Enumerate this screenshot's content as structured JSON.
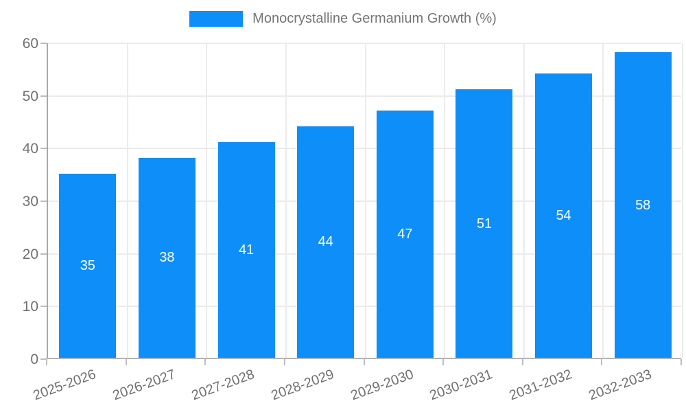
{
  "legend": {
    "label": "Monocrystalline Germanium Growth (%)"
  },
  "chart_data": {
    "type": "bar",
    "title": "",
    "xlabel": "",
    "ylabel": "",
    "categories": [
      "2025-2026",
      "2026-2027",
      "2027-2028",
      "2028-2029",
      "2029-2030",
      "2030-2031",
      "2031-2032",
      "2032-2033"
    ],
    "values": [
      35,
      38,
      41,
      44,
      47,
      51,
      54,
      58
    ],
    "series_name": "Monocrystalline Germanium Growth (%)",
    "ylim": [
      0,
      60
    ],
    "yticks": [
      0,
      10,
      20,
      30,
      40,
      50,
      60
    ],
    "grid": true,
    "legend_position": "top-center",
    "value_labels_position": "center",
    "colors": {
      "bar": "#0d8ef8",
      "value_label": "#ffffff",
      "axis_line": "#aaaaaa",
      "grid_line": "#ebebeb",
      "tick_text": "#707070",
      "legend_text": "#757575",
      "background": "#ffffff"
    }
  }
}
